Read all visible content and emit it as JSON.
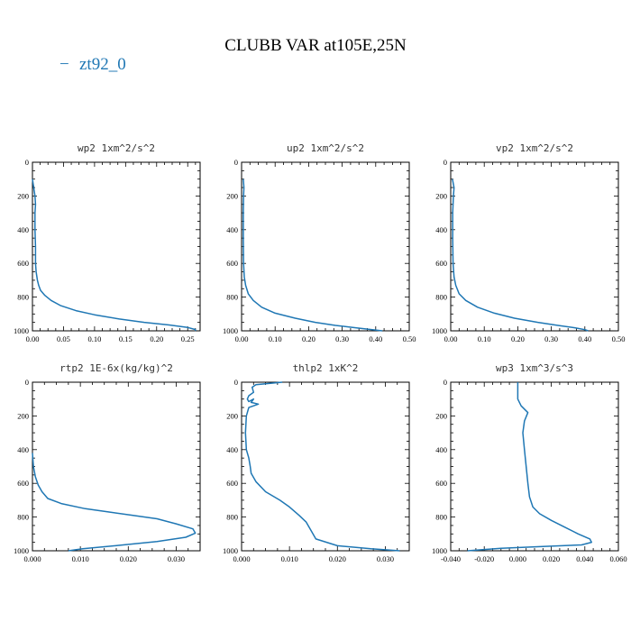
{
  "figure": {
    "title": "CLUBB VAR at105E,25N",
    "legend_label": "zt92_0",
    "legend_marker": "−",
    "series_color": "#1f77b4"
  },
  "chart_data": [
    {
      "type": "line",
      "title": "wp2  1xm^2/s^2",
      "series_name": "zt92_0",
      "xlim": [
        0,
        0.27
      ],
      "ylim": [
        0,
        1000
      ],
      "y_inverted": true,
      "xticks": [
        0,
        0.05,
        0.1,
        0.15,
        0.2,
        0.25
      ],
      "xtick_labels": [
        "0.00",
        "0.05",
        "0.10",
        "0.15",
        "0.20",
        "0.25"
      ],
      "yticks": [
        0,
        200,
        400,
        600,
        800,
        1000
      ],
      "ytick_labels": [
        "0",
        "200",
        "400",
        "600",
        "800",
        "1000"
      ],
      "x": [
        0.0,
        0.002,
        0.004,
        0.005,
        0.004,
        0.004,
        0.005,
        0.005,
        0.006,
        0.008,
        0.01,
        0.013,
        0.02,
        0.03,
        0.045,
        0.07,
        0.1,
        0.14,
        0.18,
        0.22,
        0.25,
        0.262,
        0.263
      ],
      "y": [
        100,
        150,
        200,
        250,
        300,
        400,
        500,
        600,
        650,
        700,
        730,
        760,
        790,
        820,
        850,
        880,
        905,
        930,
        950,
        965,
        980,
        992,
        1000
      ]
    },
    {
      "type": "line",
      "title": "up2  1xm^2/s^2",
      "series_name": "zt92_0",
      "xlim": [
        0,
        0.5
      ],
      "ylim": [
        0,
        1000
      ],
      "y_inverted": true,
      "xticks": [
        0,
        0.1,
        0.2,
        0.3,
        0.4,
        0.5
      ],
      "xtick_labels": [
        "0.00",
        "0.10",
        "0.20",
        "0.30",
        "0.40",
        "0.50"
      ],
      "yticks": [
        0,
        200,
        400,
        600,
        800,
        1000
      ],
      "ytick_labels": [
        "0",
        "200",
        "400",
        "600",
        "800",
        "1000"
      ],
      "x": [
        0.005,
        0.007,
        0.006,
        0.005,
        0.005,
        0.006,
        0.008,
        0.012,
        0.02,
        0.035,
        0.06,
        0.1,
        0.16,
        0.22,
        0.28,
        0.34,
        0.39,
        0.42
      ],
      "y": [
        100,
        150,
        200,
        300,
        450,
        600,
        680,
        730,
        780,
        820,
        860,
        895,
        925,
        950,
        968,
        982,
        993,
        1000
      ]
    },
    {
      "type": "line",
      "title": "vp2  1xm^2/s^2",
      "series_name": "zt92_0",
      "xlim": [
        0,
        0.5
      ],
      "ylim": [
        0,
        1000
      ],
      "y_inverted": true,
      "xticks": [
        0,
        0.1,
        0.2,
        0.3,
        0.4,
        0.5
      ],
      "xtick_labels": [
        "0.00",
        "0.10",
        "0.20",
        "0.30",
        "0.40",
        "0.50"
      ],
      "yticks": [
        0,
        200,
        400,
        600,
        800,
        1000
      ],
      "ytick_labels": [
        "0",
        "200",
        "400",
        "600",
        "800",
        "1000"
      ],
      "x": [
        0.005,
        0.01,
        0.008,
        0.006,
        0.006,
        0.007,
        0.01,
        0.015,
        0.025,
        0.045,
        0.08,
        0.13,
        0.19,
        0.26,
        0.32,
        0.37,
        0.4,
        0.41
      ],
      "y": [
        100,
        150,
        200,
        300,
        450,
        600,
        680,
        730,
        780,
        820,
        860,
        895,
        925,
        950,
        968,
        982,
        993,
        1000
      ]
    },
    {
      "type": "line",
      "title": "rtp2  1E-6x(kg/kg)^2",
      "series_name": "zt92_0",
      "xlim": [
        0,
        0.035
      ],
      "ylim": [
        0,
        1000
      ],
      "y_inverted": true,
      "xticks": [
        0,
        0.01,
        0.02,
        0.03
      ],
      "xtick_labels": [
        "0.000",
        "0.010",
        "0.020",
        "0.030"
      ],
      "yticks": [
        0,
        200,
        400,
        600,
        800,
        1000
      ],
      "ytick_labels": [
        "0",
        "200",
        "400",
        "600",
        "800",
        "1000"
      ],
      "x": [
        0.0,
        0.0002,
        0.0006,
        0.0012,
        0.002,
        0.0032,
        0.006,
        0.011,
        0.016,
        0.021,
        0.026,
        0.03,
        0.0335,
        0.034,
        0.032,
        0.026,
        0.018,
        0.0105,
        0.0075
      ],
      "y": [
        420,
        500,
        560,
        610,
        650,
        690,
        720,
        750,
        770,
        790,
        810,
        840,
        870,
        895,
        920,
        945,
        968,
        988,
        1000
      ]
    },
    {
      "type": "line",
      "title": "thlp2  1xK^2",
      "series_name": "zt92_0",
      "xlim": [
        0,
        0.035
      ],
      "ylim": [
        0,
        1000
      ],
      "y_inverted": true,
      "xticks": [
        0,
        0.01,
        0.02,
        0.03
      ],
      "xtick_labels": [
        "0.000",
        "0.010",
        "0.020",
        "0.030"
      ],
      "yticks": [
        0,
        200,
        400,
        600,
        800,
        1000
      ],
      "ytick_labels": [
        "0",
        "200",
        "400",
        "600",
        "800",
        "1000"
      ],
      "x": [
        0.0085,
        0.003,
        0.0022,
        0.0025,
        0.0015,
        0.0012,
        0.0015,
        0.0025,
        0.002,
        0.0035,
        0.0015,
        0.001,
        0.0008,
        0.001,
        0.0015,
        0.0018,
        0.002,
        0.003,
        0.005,
        0.008,
        0.01,
        0.012,
        0.0135,
        0.0145,
        0.0155,
        0.02,
        0.027,
        0.033
      ],
      "y": [
        0,
        15,
        30,
        60,
        80,
        100,
        115,
        100,
        120,
        130,
        150,
        200,
        300,
        400,
        450,
        500,
        540,
        590,
        650,
        700,
        740,
        790,
        830,
        880,
        930,
        970,
        988,
        1000
      ]
    },
    {
      "type": "line",
      "title": "wp3  1xm^3/s^3",
      "series_name": "zt92_0",
      "xlim": [
        -0.04,
        0.06
      ],
      "ylim": [
        0,
        1000
      ],
      "y_inverted": true,
      "xticks": [
        -0.04,
        -0.02,
        0,
        0.02,
        0.04,
        0.06
      ],
      "xtick_labels": [
        "-0.040",
        "-0.020",
        "0.000",
        "0.020",
        "0.040",
        "0.060"
      ],
      "yticks": [
        0,
        200,
        400,
        600,
        800,
        1000
      ],
      "ytick_labels": [
        "0",
        "200",
        "400",
        "600",
        "800",
        "1000"
      ],
      "x": [
        0.0,
        0.0,
        0.002,
        0.006,
        0.004,
        0.003,
        0.004,
        0.005,
        0.006,
        0.007,
        0.009,
        0.013,
        0.02,
        0.028,
        0.036,
        0.043,
        0.044,
        0.038,
        0.015,
        -0.01,
        -0.03
      ],
      "y": [
        0,
        100,
        140,
        180,
        230,
        300,
        400,
        500,
        600,
        680,
        740,
        780,
        820,
        860,
        900,
        930,
        950,
        965,
        975,
        985,
        1000
      ]
    }
  ]
}
